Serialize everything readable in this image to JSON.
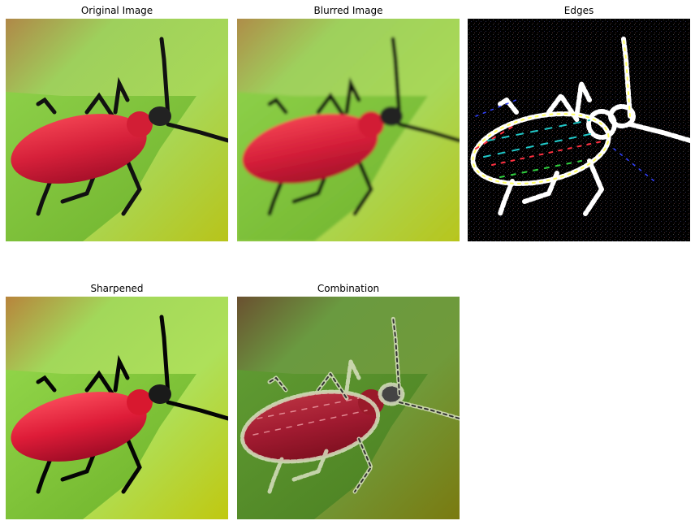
{
  "panels": [
    {
      "id": "original",
      "title": "Original Image",
      "variant": "original"
    },
    {
      "id": "blurred",
      "title": "Blurred Image",
      "variant": "blurred"
    },
    {
      "id": "edges",
      "title": "Edges",
      "variant": "edges"
    },
    {
      "id": "sharpened",
      "title": "Sharpened",
      "variant": "sharpened"
    },
    {
      "id": "combination",
      "title": "Combination",
      "variant": "combination"
    }
  ],
  "colors": {
    "background": "#ffffff",
    "beetle_red": "#d8203a",
    "leaf_green": "#7cc63a",
    "bg_green": "#a9d85a",
    "edge_white": "#ffffff",
    "edge_black": "#000000"
  }
}
